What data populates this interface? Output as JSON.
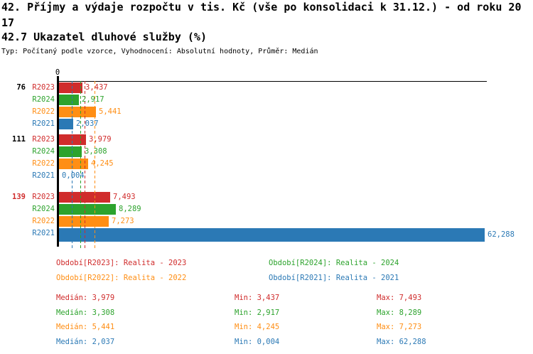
{
  "header": {
    "title_line1": "42. Příjmy a výdaje rozpočtu v tis. Kč (vše po konsolidaci k 31.12.) - od roku 20",
    "title_line2": "17",
    "subtitle": "42.7 Ukazatel dluhové služby (%)",
    "meta": "Typ: Počítaný podle vzorce, Vyhodnocení: Absolutní hodnoty, Průměr: Medián"
  },
  "colors": {
    "R2023": "#d02c2c",
    "R2024": "#2da32d",
    "R2022": "#ff8e14",
    "R2021": "#2b79b5",
    "axis": "#000000"
  },
  "chart_data": {
    "type": "bar",
    "orientation": "horizontal",
    "title": "42.7 Ukazatel dluhové služby (%)",
    "unit": "%",
    "decimal_separator": ",",
    "axis_zero_label": "0",
    "xlim": [
      0,
      62.288
    ],
    "grid": false,
    "series_order": [
      "R2023",
      "R2024",
      "R2022",
      "R2021"
    ],
    "groups": [
      {
        "label": "76",
        "label_color": "#000000",
        "bars": [
          {
            "series": "R2023",
            "value": 3.437,
            "display": "3,437"
          },
          {
            "series": "R2024",
            "value": 2.917,
            "display": "2,917"
          },
          {
            "series": "R2022",
            "value": 5.441,
            "display": "5,441"
          },
          {
            "series": "R2021",
            "value": 2.037,
            "display": "2,037"
          }
        ]
      },
      {
        "label": "111",
        "label_color": "#000000",
        "bars": [
          {
            "series": "R2023",
            "value": 3.979,
            "display": "3,979"
          },
          {
            "series": "R2024",
            "value": 3.308,
            "display": "3,308"
          },
          {
            "series": "R2022",
            "value": 4.245,
            "display": "4,245"
          },
          {
            "series": "R2021",
            "value": 0.004,
            "display": "0,004"
          }
        ]
      },
      {
        "label": "139",
        "label_color": "#d02c2c",
        "bars": [
          {
            "series": "R2023",
            "value": 7.493,
            "display": "7,493"
          },
          {
            "series": "R2024",
            "value": 8.289,
            "display": "8,289"
          },
          {
            "series": "R2022",
            "value": 7.273,
            "display": "7,273"
          },
          {
            "series": "R2021",
            "value": 62.288,
            "display": "62,288"
          }
        ]
      }
    ],
    "median_lines": [
      {
        "series": "R2023",
        "value": 3.979,
        "display": "3,979"
      },
      {
        "series": "R2024",
        "value": 3.308,
        "display": "3,308"
      },
      {
        "series": "R2022",
        "value": 5.441,
        "display": "5,441"
      },
      {
        "series": "R2021",
        "value": 2.037,
        "display": "2,037"
      }
    ]
  },
  "legend": {
    "items": [
      {
        "series": "R2023",
        "label": "Období[R2023]: Realita - 2023"
      },
      {
        "series": "R2024",
        "label": "Období[R2024]: Realita - 2024"
      },
      {
        "series": "R2022",
        "label": "Období[R2022]: Realita - 2022"
      },
      {
        "series": "R2021",
        "label": "Období[R2021]: Realita - 2021"
      }
    ]
  },
  "stats": {
    "rows": [
      {
        "series": "R2023",
        "median_label": "Medián: 3,979",
        "min_label": "Min: 3,437",
        "max_label": "Max: 7,493"
      },
      {
        "series": "R2024",
        "median_label": "Medián: 3,308",
        "min_label": "Min: 2,917",
        "max_label": "Max: 8,289"
      },
      {
        "series": "R2022",
        "median_label": "Medián: 5,441",
        "min_label": "Min: 4,245",
        "max_label": "Max: 7,273"
      },
      {
        "series": "R2021",
        "median_label": "Medián: 2,037",
        "min_label": "Min: 0,004",
        "max_label": "Max: 62,288"
      }
    ]
  }
}
